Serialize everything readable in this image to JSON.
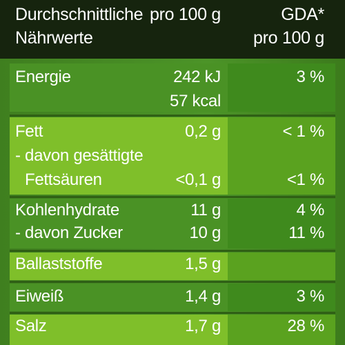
{
  "header": {
    "col1_line1": "Durchschnittliche",
    "col1_line2": "Nährwerte",
    "col2": "pro 100 g",
    "col3_line1": "GDA*",
    "col3_line2": "pro 100 g"
  },
  "rows": [
    {
      "label": "Energie",
      "value": "242 kJ",
      "value2": "57 kcal",
      "gda": "3 %"
    },
    {
      "label": "Fett",
      "value": "0,2 g",
      "gda": "< 1 %"
    },
    {
      "label": "- davon gesättigte"
    },
    {
      "label": "Fettsäuren",
      "value": "<0,1 g",
      "gda": "<1 %"
    },
    {
      "label": "Kohlenhydrate",
      "value": "11 g",
      "gda": "4 %"
    },
    {
      "label": "- davon Zucker",
      "value": "10 g",
      "gda": "11 %"
    },
    {
      "label": "Ballaststoffe",
      "value": "1,5 g"
    },
    {
      "label": "Eiweiß",
      "value": "1,4 g",
      "gda": "3 %"
    },
    {
      "label": "Salz",
      "value": "1,7 g",
      "gda": "28 %"
    }
  ]
}
